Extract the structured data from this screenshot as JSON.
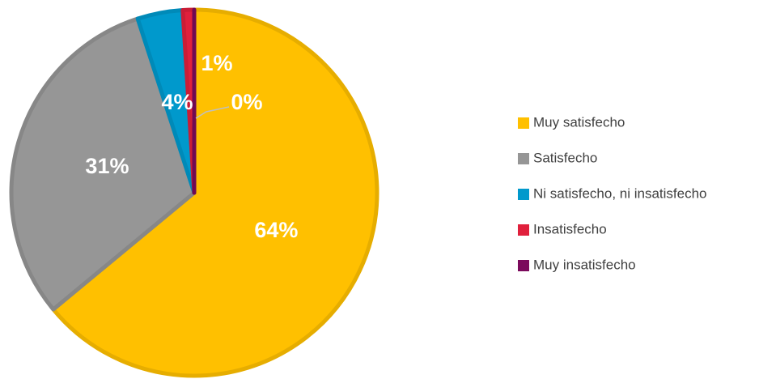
{
  "chart_data": {
    "type": "pie",
    "categories": [
      "Muy satisfecho",
      "Satisfecho",
      "Ni satisfecho, ni insatisfecho",
      "Insatisfecho",
      "Muy insatisfecho"
    ],
    "values": [
      64,
      31,
      4,
      1,
      0
    ],
    "value_labels": [
      "64%",
      "31%",
      "4%",
      "1%",
      "0%"
    ],
    "colors": [
      "#FFC000",
      "#969696",
      "#0099CC",
      "#E0203C",
      "#7B0A5C"
    ],
    "legend": "right"
  }
}
